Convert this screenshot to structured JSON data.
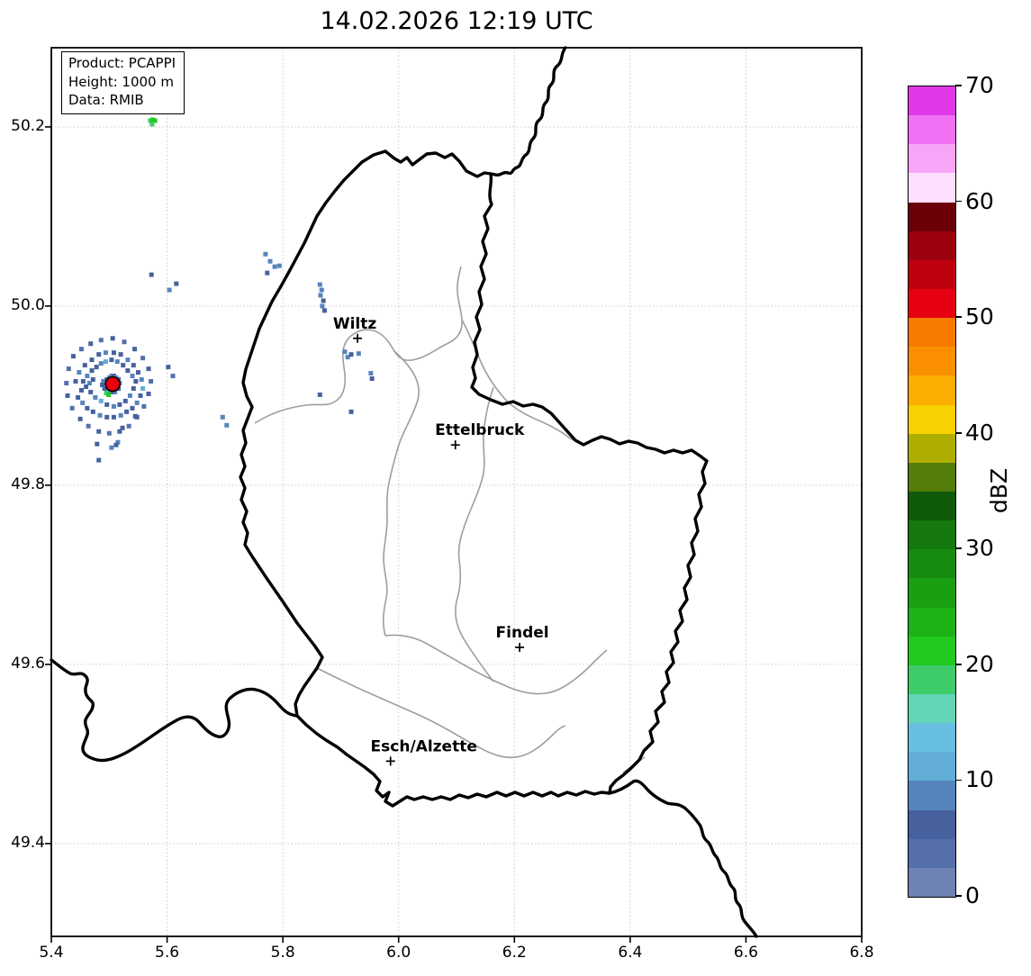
{
  "title": "14.02.2026 12:19 UTC",
  "info_box": {
    "lines": [
      "Product: PCAPPI",
      "Height: 1000 m",
      "Data: RMIB"
    ]
  },
  "axes": {
    "x_ticks": [
      "5.4",
      "5.6",
      "5.8",
      "6.0",
      "6.2",
      "6.4",
      "6.6",
      "6.8"
    ],
    "y_ticks": [
      "50.2",
      "50.0",
      "49.8",
      "49.6",
      "49.4"
    ],
    "x_grid": [
      5.6,
      5.8,
      6.0,
      6.2,
      6.4,
      6.6
    ],
    "y_grid": [
      50.2,
      50.0,
      49.8,
      49.6,
      49.4
    ],
    "x_range": [
      5.4,
      6.8
    ],
    "y_range": [
      49.2964,
      50.2884
    ]
  },
  "colorbar": {
    "label": "dBZ",
    "ticks": [
      70,
      60,
      50,
      40,
      30,
      20,
      10,
      0
    ],
    "vmin": 0,
    "vmax": 70,
    "step": 2.5,
    "colors_top_to_bottom": [
      "#e138e7",
      "#f16ff3",
      "#f7a6f7",
      "#fcdffc",
      "#6c0009",
      "#9a000d",
      "#bf000f",
      "#e60012",
      "#f97a00",
      "#fa9000",
      "#fbae00",
      "#f9d000",
      "#aeae00",
      "#557d0c",
      "#0f5a0a",
      "#14780e",
      "#168c10",
      "#199f12",
      "#1db216",
      "#21c91f",
      "#3ecb6a",
      "#63d6b8",
      "#67bee0",
      "#62aed6",
      "#5584bc",
      "#46619e",
      "#5570ac",
      "#6e82b4"
    ]
  },
  "chart_data": {
    "type": "heatmap",
    "title": "14.02.2026 12:19 UTC",
    "units": "dBZ",
    "xlabel": "",
    "ylabel": "",
    "x_range": [
      5.4,
      6.8
    ],
    "y_range": [
      49.2964,
      50.2884
    ],
    "grid": "dotted",
    "legend_position": "right-colorbar",
    "radar_site": {
      "lon": 5.506,
      "lat": 49.913,
      "marker_color": "#e8000b"
    },
    "cities": [
      {
        "name": "Wiltz",
        "lon": 5.929,
        "lat": 49.964,
        "label_dx": -3
      },
      {
        "name": "Ettelbruck",
        "lon": 6.098,
        "lat": 49.845,
        "label_dx": 27
      },
      {
        "name": "Findel",
        "lon": 6.209,
        "lat": 49.619,
        "label_dx": 3
      },
      {
        "name": "Esch/Alzette",
        "lon": 5.986,
        "lat": 49.492,
        "label_dx": 37
      }
    ],
    "cells": [
      [
        5.49,
        49.916,
        8
      ],
      [
        5.494,
        49.914,
        10
      ],
      [
        5.498,
        49.912,
        8
      ],
      [
        5.502,
        49.91,
        10
      ],
      [
        5.506,
        49.908,
        8
      ],
      [
        5.51,
        49.91,
        10
      ],
      [
        5.514,
        49.912,
        8
      ],
      [
        5.512,
        49.916,
        10
      ],
      [
        5.508,
        49.918,
        8
      ],
      [
        5.504,
        49.918,
        10
      ],
      [
        5.5,
        49.916,
        8
      ],
      [
        5.496,
        49.918,
        6
      ],
      [
        5.5,
        49.92,
        8
      ],
      [
        5.504,
        49.922,
        8
      ],
      [
        5.508,
        49.922,
        6
      ],
      [
        5.512,
        49.92,
        8
      ],
      [
        5.516,
        49.918,
        6
      ],
      [
        5.518,
        49.914,
        8
      ],
      [
        5.516,
        49.908,
        6
      ],
      [
        5.51,
        49.904,
        8
      ],
      [
        5.504,
        49.904,
        6
      ],
      [
        5.498,
        49.906,
        8
      ],
      [
        5.492,
        49.908,
        6
      ],
      [
        5.488,
        49.912,
        6
      ],
      [
        5.495,
        49.903,
        18
      ],
      [
        5.499,
        49.901,
        22
      ],
      [
        5.472,
        49.918,
        6
      ],
      [
        5.466,
        49.914,
        8
      ],
      [
        5.46,
        49.91,
        6
      ],
      [
        5.455,
        49.916,
        6
      ],
      [
        5.462,
        49.922,
        8
      ],
      [
        5.47,
        49.928,
        6
      ],
      [
        5.478,
        49.932,
        6
      ],
      [
        5.486,
        49.936,
        8
      ],
      [
        5.494,
        49.938,
        12
      ],
      [
        5.504,
        49.94,
        6
      ],
      [
        5.514,
        49.938,
        8
      ],
      [
        5.524,
        49.934,
        6
      ],
      [
        5.532,
        49.928,
        6
      ],
      [
        5.54,
        49.922,
        8
      ],
      [
        5.546,
        49.916,
        6
      ],
      [
        5.542,
        49.908,
        6
      ],
      [
        5.536,
        49.9,
        8
      ],
      [
        5.528,
        49.894,
        6
      ],
      [
        5.518,
        49.89,
        6
      ],
      [
        5.508,
        49.888,
        8
      ],
      [
        5.496,
        49.89,
        6
      ],
      [
        5.486,
        49.894,
        12
      ],
      [
        5.476,
        49.898,
        8
      ],
      [
        5.468,
        49.904,
        6
      ],
      [
        5.452,
        49.906,
        6
      ],
      [
        5.446,
        49.898,
        6
      ],
      [
        5.454,
        49.892,
        8
      ],
      [
        5.462,
        49.886,
        6
      ],
      [
        5.472,
        49.882,
        6
      ],
      [
        5.484,
        49.878,
        8
      ],
      [
        5.496,
        49.876,
        6
      ],
      [
        5.508,
        49.876,
        6
      ],
      [
        5.52,
        49.878,
        8
      ],
      [
        5.53,
        49.882,
        6
      ],
      [
        5.54,
        49.886,
        6
      ],
      [
        5.548,
        49.892,
        8
      ],
      [
        5.554,
        49.9,
        6
      ],
      [
        5.558,
        49.908,
        12
      ],
      [
        5.556,
        49.918,
        8
      ],
      [
        5.55,
        49.926,
        6
      ],
      [
        5.542,
        49.934,
        6
      ],
      [
        5.532,
        49.94,
        8
      ],
      [
        5.52,
        49.946,
        6
      ],
      [
        5.508,
        49.948,
        6
      ],
      [
        5.494,
        49.948,
        8
      ],
      [
        5.482,
        49.946,
        6
      ],
      [
        5.47,
        49.94,
        6
      ],
      [
        5.458,
        49.934,
        6
      ],
      [
        5.448,
        49.926,
        8
      ],
      [
        5.442,
        49.916,
        6
      ],
      [
        5.43,
        49.93,
        4
      ],
      [
        5.438,
        49.944,
        6
      ],
      [
        5.452,
        49.952,
        4
      ],
      [
        5.468,
        49.958,
        6
      ],
      [
        5.486,
        49.962,
        4
      ],
      [
        5.506,
        49.964,
        6
      ],
      [
        5.526,
        49.96,
        4
      ],
      [
        5.544,
        49.952,
        6
      ],
      [
        5.558,
        49.942,
        4
      ],
      [
        5.568,
        49.93,
        6
      ],
      [
        5.572,
        49.916,
        4
      ],
      [
        5.568,
        49.902,
        6
      ],
      [
        5.56,
        49.888,
        4
      ],
      [
        5.548,
        49.876,
        6
      ],
      [
        5.534,
        49.866,
        4
      ],
      [
        5.518,
        49.86,
        6
      ],
      [
        5.5,
        49.858,
        4
      ],
      [
        5.482,
        49.86,
        6
      ],
      [
        5.464,
        49.866,
        4
      ],
      [
        5.45,
        49.874,
        6
      ],
      [
        5.436,
        49.886,
        4
      ],
      [
        5.428,
        49.9,
        6
      ],
      [
        5.426,
        49.914,
        4
      ],
      [
        5.602,
        49.932,
        6
      ],
      [
        5.61,
        49.922,
        4
      ],
      [
        5.545,
        49.877,
        6
      ],
      [
        5.523,
        49.864,
        6
      ],
      [
        5.515,
        49.848,
        8
      ],
      [
        5.479,
        49.846,
        6
      ],
      [
        5.504,
        49.842,
        8
      ],
      [
        5.512,
        49.845,
        6
      ],
      [
        5.482,
        49.828,
        6
      ],
      [
        5.696,
        49.876,
        8
      ],
      [
        5.703,
        49.867,
        8
      ],
      [
        5.573,
        50.035,
        6
      ],
      [
        5.604,
        50.018,
        8
      ],
      [
        5.616,
        50.025,
        6
      ],
      [
        5.77,
        50.058,
        8
      ],
      [
        5.778,
        50.05,
        10
      ],
      [
        5.786,
        50.044,
        8
      ],
      [
        5.773,
        50.037,
        6
      ],
      [
        5.794,
        50.045,
        8
      ],
      [
        5.864,
        50.024,
        8
      ],
      [
        5.867,
        50.018,
        10
      ],
      [
        5.865,
        50.012,
        8
      ],
      [
        5.87,
        50.006,
        6
      ],
      [
        5.868,
        50.0,
        8
      ],
      [
        5.872,
        49.995,
        6
      ],
      [
        5.907,
        49.949,
        8
      ],
      [
        5.912,
        49.943,
        10
      ],
      [
        5.918,
        49.946,
        6
      ],
      [
        5.931,
        49.947,
        8
      ],
      [
        5.952,
        49.925,
        8
      ],
      [
        5.954,
        49.919,
        6
      ],
      [
        5.864,
        49.901,
        6
      ],
      [
        5.918,
        49.882,
        6
      ],
      [
        5.571,
        50.207,
        20
      ],
      [
        5.575,
        50.208,
        22
      ],
      [
        5.579,
        50.207,
        21
      ],
      [
        5.574,
        50.203,
        18
      ]
    ]
  }
}
